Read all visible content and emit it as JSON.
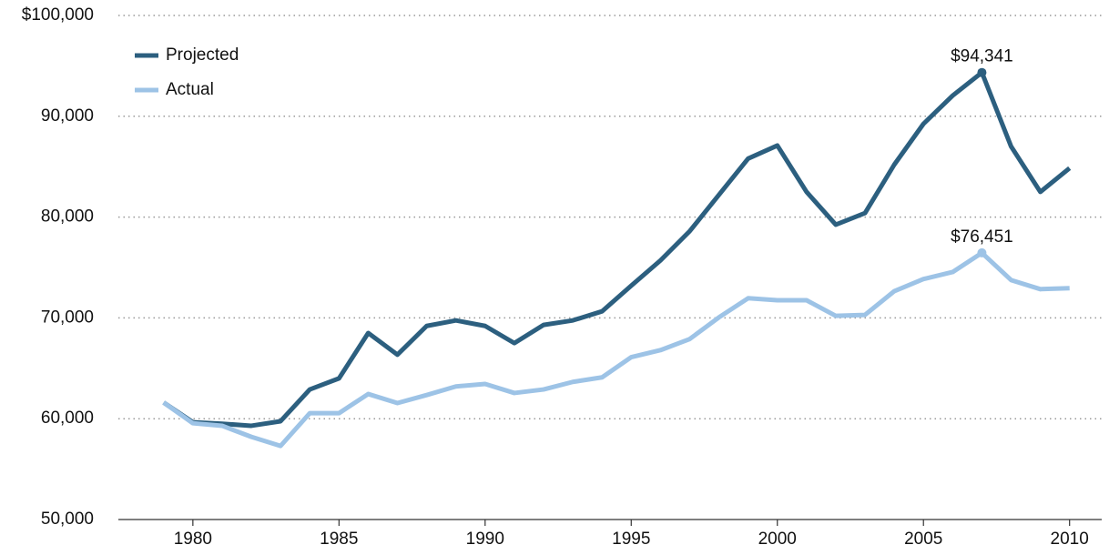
{
  "chart_data": {
    "type": "line",
    "x": [
      1979,
      1980,
      1981,
      1982,
      1983,
      1984,
      1985,
      1986,
      1987,
      1988,
      1989,
      1990,
      1991,
      1992,
      1993,
      1994,
      1995,
      1996,
      1997,
      1998,
      1999,
      2000,
      2001,
      2002,
      2003,
      2004,
      2005,
      2006,
      2007,
      2008,
      2009,
      2010
    ],
    "series": [
      {
        "name": "Projected",
        "color": "#2c5f7f",
        "values": [
          61600,
          59650,
          59500,
          59300,
          59750,
          62900,
          64000,
          68500,
          66350,
          69200,
          69750,
          69200,
          67500,
          69300,
          69750,
          70650,
          73200,
          75700,
          78600,
          82200,
          85800,
          87100,
          82500,
          79250,
          80400,
          85200,
          89250,
          92050,
          94341,
          87000,
          82500,
          84850
        ],
        "value_labels": [
          null,
          null,
          null,
          null,
          null,
          null,
          null,
          null,
          null,
          null,
          null,
          null,
          null,
          null,
          null,
          null,
          null,
          null,
          null,
          null,
          null,
          null,
          null,
          null,
          null,
          null,
          null,
          null,
          "$94,341",
          null,
          null,
          null
        ]
      },
      {
        "name": "Actual",
        "color": "#9dc3e6",
        "values": [
          61600,
          59550,
          59300,
          58200,
          57300,
          60550,
          60550,
          62450,
          61550,
          62350,
          63200,
          63450,
          62550,
          62900,
          63650,
          64100,
          66100,
          66800,
          67900,
          70050,
          71950,
          71750,
          71750,
          70200,
          70300,
          72650,
          73850,
          74550,
          76451,
          73750,
          72850,
          72950
        ],
        "value_labels": [
          null,
          null,
          null,
          null,
          null,
          null,
          null,
          null,
          null,
          null,
          null,
          null,
          null,
          null,
          null,
          null,
          null,
          null,
          null,
          null,
          null,
          null,
          null,
          null,
          null,
          null,
          null,
          null,
          "$76,451",
          null,
          null,
          null
        ]
      }
    ],
    "xlim": [
      1977.45,
      2011.1
    ],
    "xticks": [
      1980,
      1985,
      1990,
      1995,
      2000,
      2005,
      2010
    ],
    "ylim": [
      50000,
      100000
    ],
    "yticks": [
      {
        "value": 50000,
        "label": "50,000"
      },
      {
        "value": 60000,
        "label": "60,000"
      },
      {
        "value": 70000,
        "label": "70,000"
      },
      {
        "value": 80000,
        "label": "80,000"
      },
      {
        "value": 90000,
        "label": "90,000"
      },
      {
        "value": 100000,
        "label": "$100,000"
      }
    ],
    "grid": true,
    "legend": "top-left"
  }
}
